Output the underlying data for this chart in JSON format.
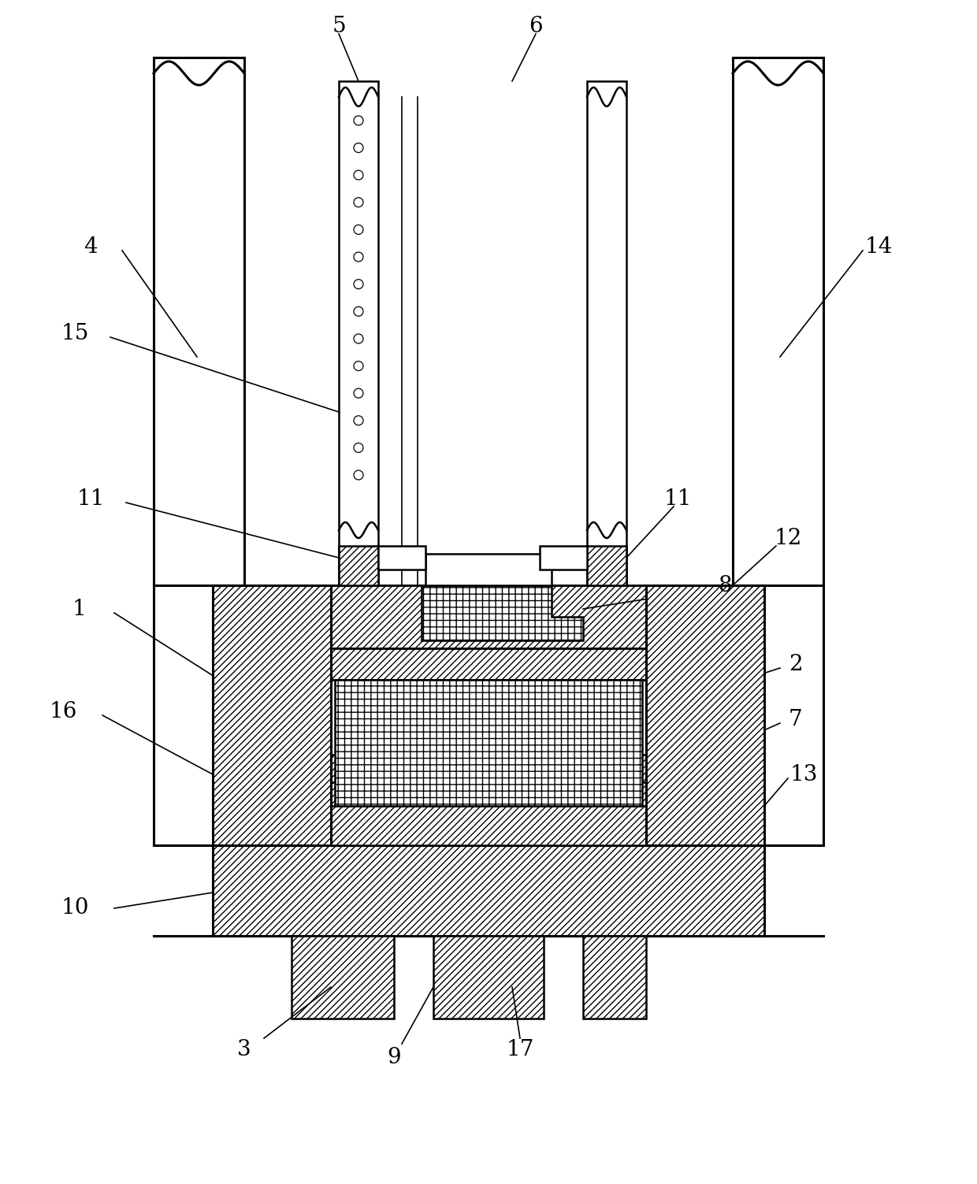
{
  "bg_color": "#ffffff",
  "lc": "#000000",
  "lw": 1.8,
  "lw2": 2.2,
  "lw3": 1.2,
  "label_fs": 20,
  "fig_w": 12.4,
  "fig_h": 15.03
}
